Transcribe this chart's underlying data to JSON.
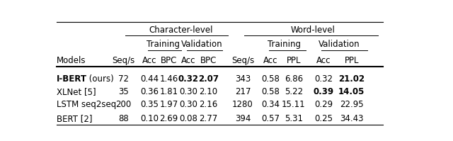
{
  "title_char": "Character-level",
  "title_word": "Word-level",
  "rows": [
    {
      "model": "I-BERT",
      "model_suffix": " (ours)",
      "model_bold": true,
      "char_seq": "72",
      "char_tr_acc": "0.44",
      "char_tr_bpc": "1.46",
      "char_val_acc": "0.32",
      "char_val_bpc": "2.07",
      "word_seq": "343",
      "word_tr_acc": "0.58",
      "word_tr_ppl": "6.86",
      "word_val_acc": "0.32",
      "word_val_ppl": "21.02",
      "bold_cols": [
        4,
        5,
        10
      ]
    },
    {
      "model": "XLNet [5]",
      "model_suffix": "",
      "model_bold": false,
      "char_seq": "35",
      "char_tr_acc": "0.36",
      "char_tr_bpc": "1.81",
      "char_val_acc": "0.30",
      "char_val_bpc": "2.10",
      "word_seq": "217",
      "word_tr_acc": "0.58",
      "word_tr_ppl": "5.22",
      "word_val_acc": "0.39",
      "word_val_ppl": "14.05",
      "bold_cols": [
        9,
        10
      ]
    },
    {
      "model": "LSTM seq2seq",
      "model_suffix": "",
      "model_bold": false,
      "char_seq": "200",
      "char_tr_acc": "0.35",
      "char_tr_bpc": "1.97",
      "char_val_acc": "0.30",
      "char_val_bpc": "2.16",
      "word_seq": "1280",
      "word_tr_acc": "0.34",
      "word_tr_ppl": "15.11",
      "word_val_acc": "0.29",
      "word_val_ppl": "22.95",
      "bold_cols": []
    },
    {
      "model": "BERT [2]",
      "model_suffix": "",
      "model_bold": false,
      "char_seq": "88",
      "char_tr_acc": "0.10",
      "char_tr_bpc": "2.69",
      "char_val_acc": "0.08",
      "char_val_bpc": "2.77",
      "word_seq": "394",
      "word_tr_acc": "0.57",
      "word_tr_ppl": "5.31",
      "word_val_acc": "0.25",
      "word_val_ppl": "34.43",
      "bold_cols": []
    }
  ],
  "bg_color": "#ffffff",
  "text_color": "#000000",
  "font_size": 8.5
}
